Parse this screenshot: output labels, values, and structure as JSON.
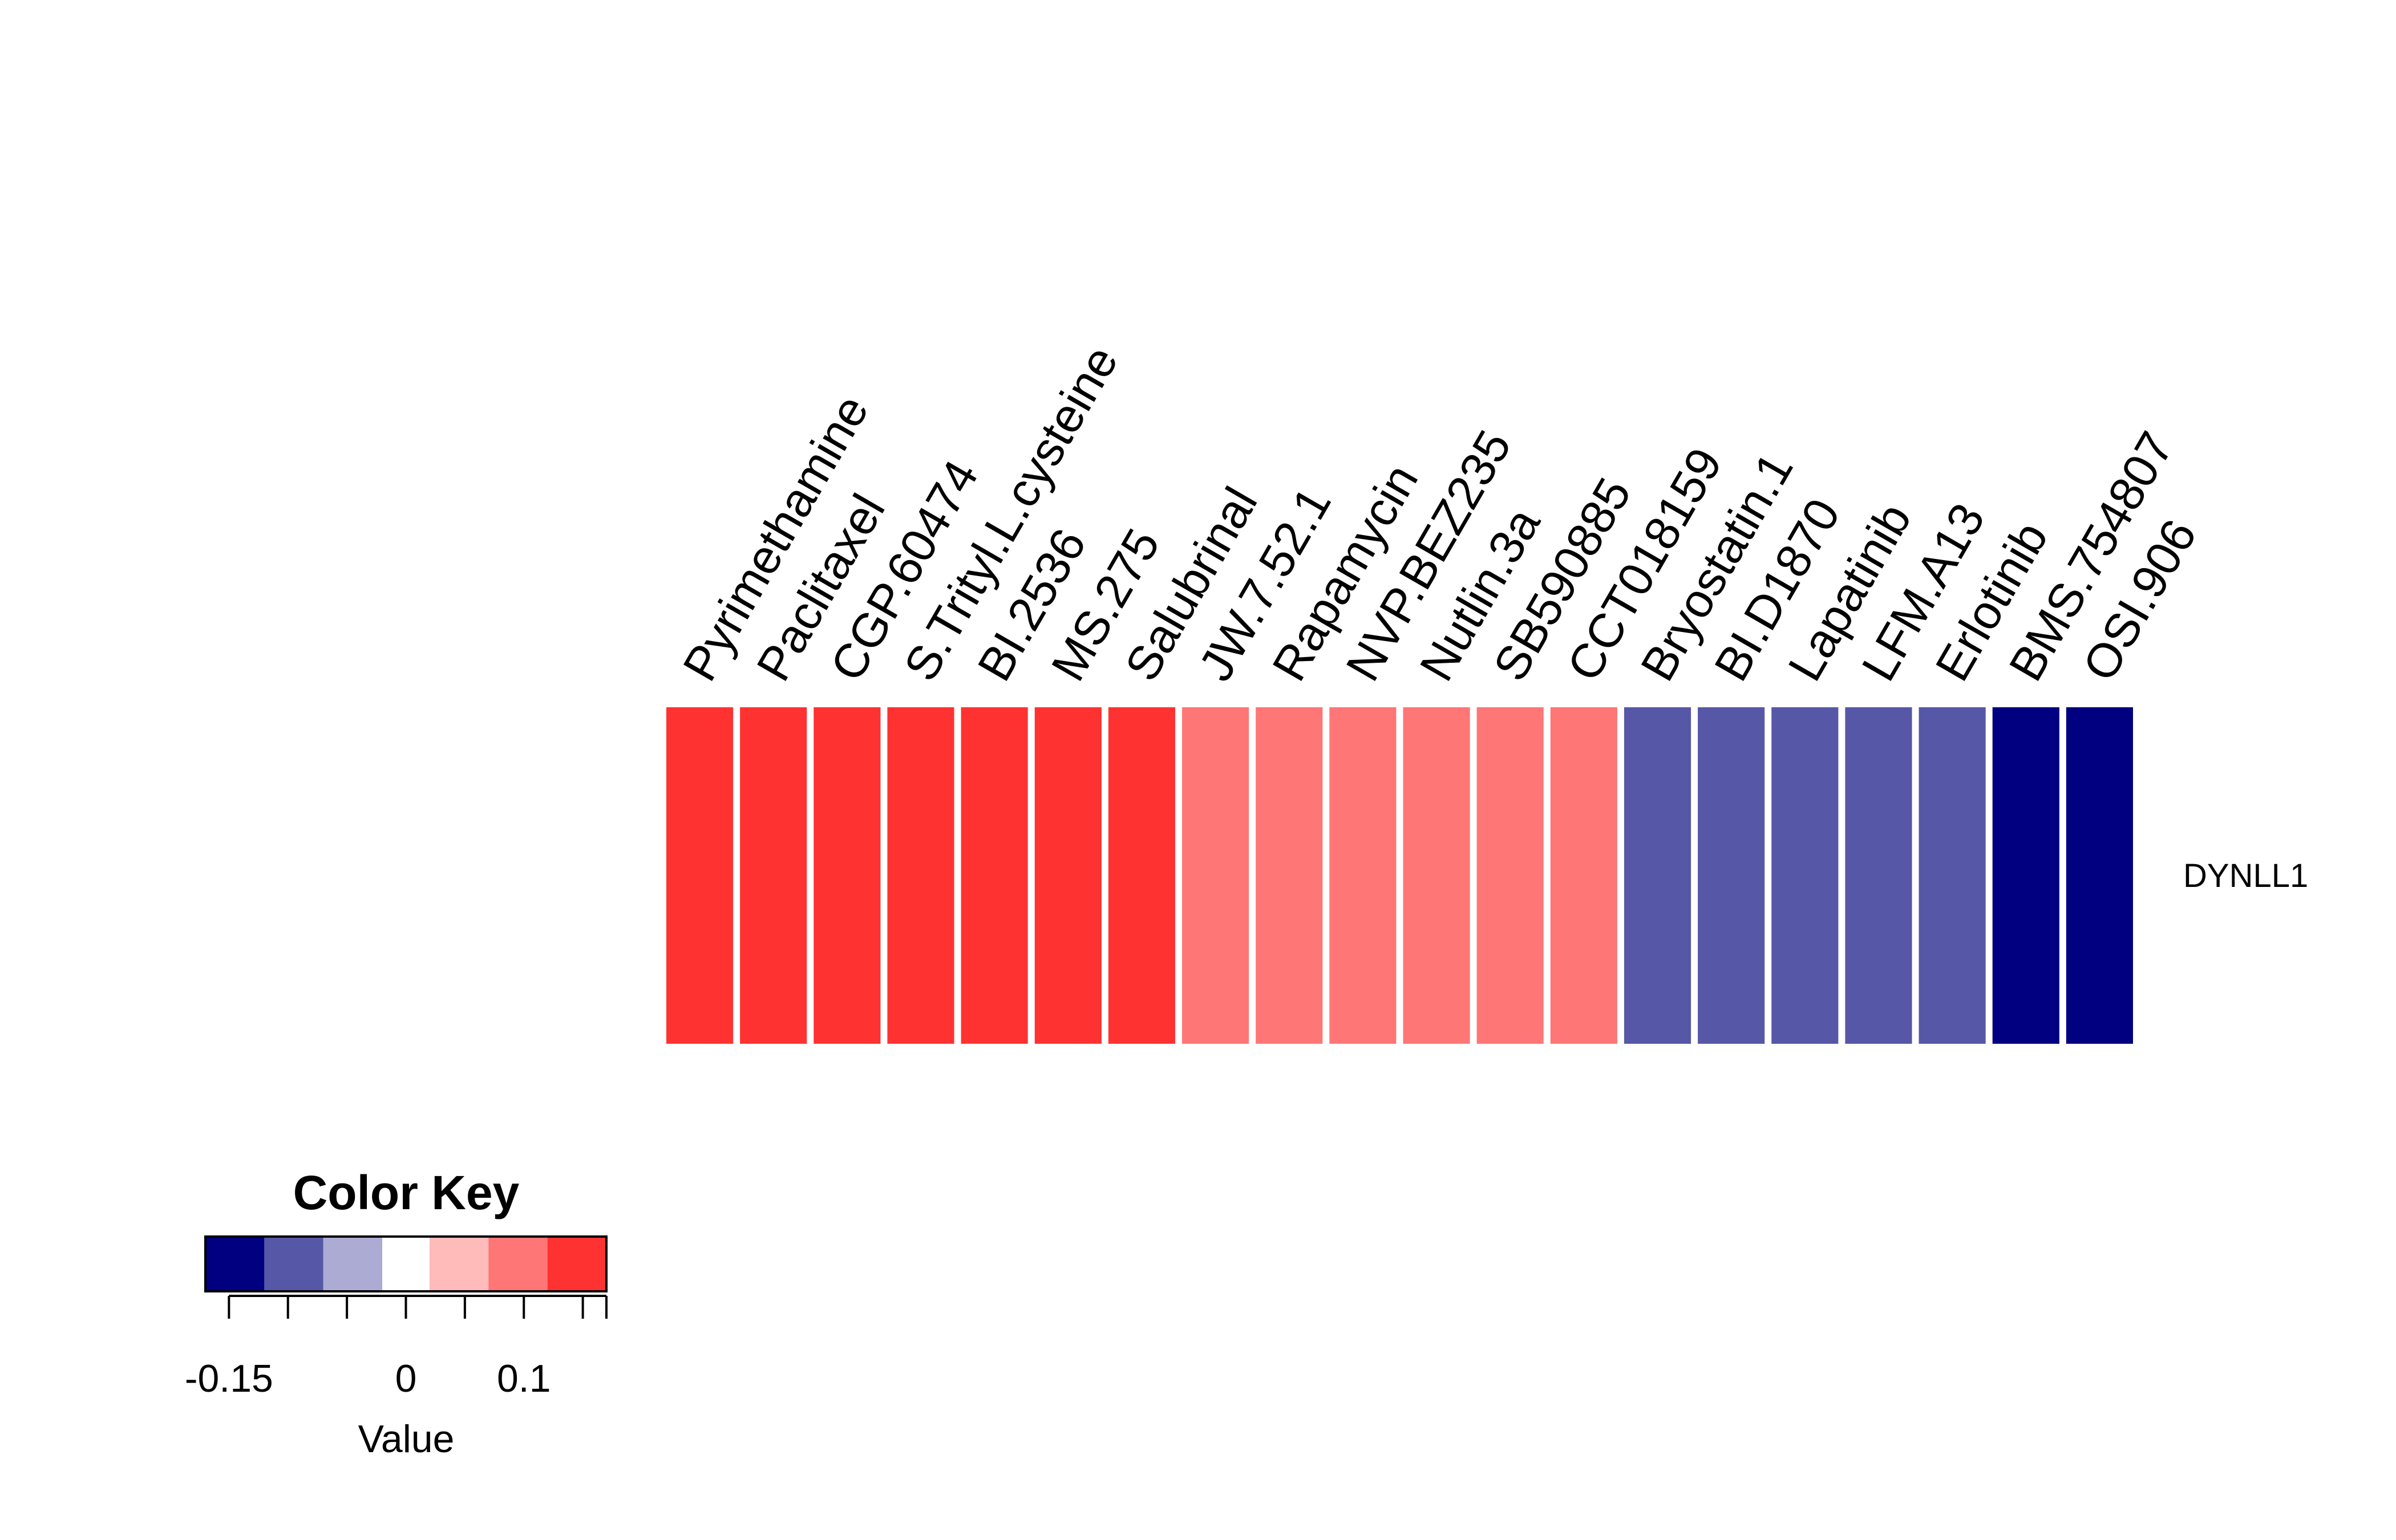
{
  "chart_data": {
    "type": "heatmap",
    "rows": [
      "DYNLL1"
    ],
    "columns": [
      "Pyrimethamine",
      "Paclitaxel",
      "CGP.60474",
      "S.Trityl.L.cysteine",
      "BI.2536",
      "MS.275",
      "Salubrinal",
      "JW.7.52.1",
      "Rapamycin",
      "NVP.BEZ235",
      "Nutlin.3a",
      "SB590885",
      "CCT018159",
      "Bryostatin.1",
      "BI.D1870",
      "Lapatinib",
      "LFM.A13",
      "Erlotinib",
      "BMS.754807",
      "OSI.906"
    ],
    "values": [
      [
        0.14,
        0.14,
        0.14,
        0.14,
        0.14,
        0.14,
        0.14,
        0.09,
        0.09,
        0.09,
        0.09,
        0.09,
        0.09,
        -0.09,
        -0.09,
        -0.09,
        -0.09,
        -0.09,
        -0.14,
        -0.14
      ]
    ],
    "color_key": {
      "title": "Color Key",
      "xlabel": "Value",
      "range": [
        -0.17,
        0.17
      ],
      "breaks": [
        -0.17,
        -0.12,
        -0.07,
        -0.02,
        0.02,
        0.07,
        0.12,
        0.17
      ],
      "colors": [
        "#000080",
        "#5757A8",
        "#ABABD3",
        "#FFFFFF",
        "#FFBABA",
        "#FF7676",
        "#FF3232"
      ],
      "tick_labels": [
        {
          "value": -0.15,
          "label": "-0.15"
        },
        {
          "value": 0,
          "label": "0"
        },
        {
          "value": 0.1,
          "label": "0.1"
        }
      ],
      "minor_ticks": [
        -0.15,
        -0.1,
        -0.05,
        0,
        0.05,
        0.1,
        0.15
      ]
    }
  }
}
